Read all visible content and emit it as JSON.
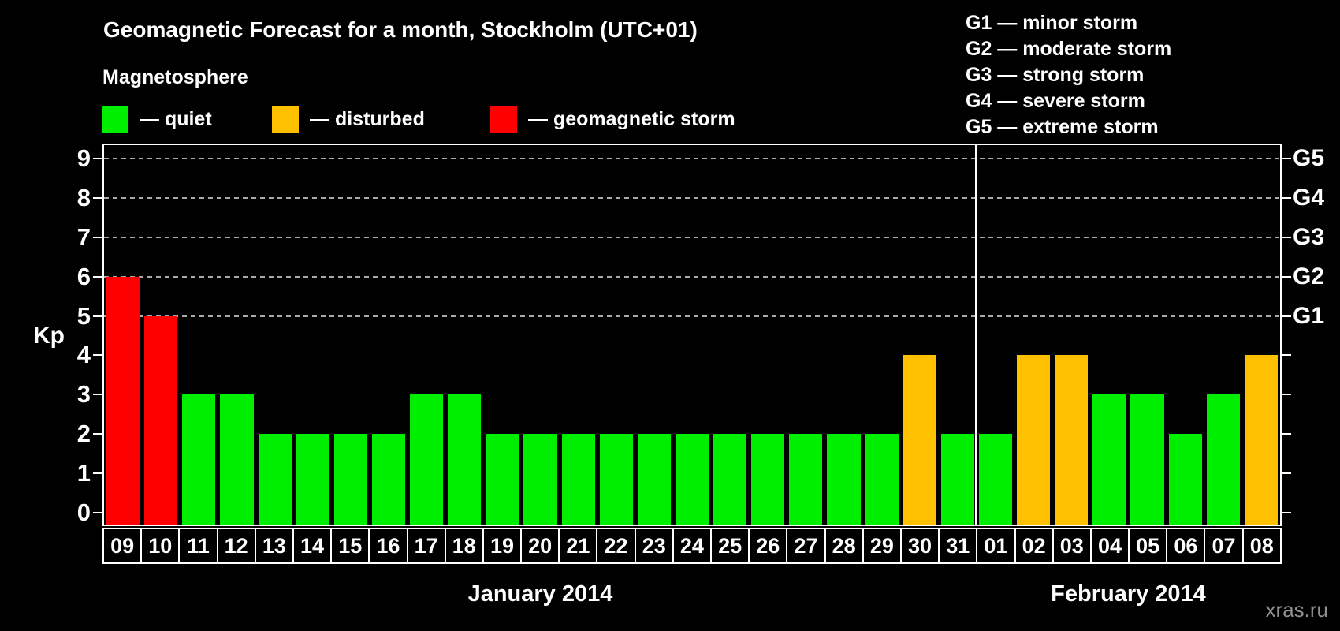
{
  "title": "Geomagnetic Forecast for a month, Stockholm (UTC+01)",
  "legend": {
    "heading": "Magnetosphere",
    "items": [
      {
        "status": "quiet",
        "label": "— quiet",
        "color": "#00ee00"
      },
      {
        "status": "disturbed",
        "label": "— disturbed",
        "color": "#ffc000"
      },
      {
        "status": "storm",
        "label": "— geomagnetic storm",
        "color": "#ff0000"
      }
    ]
  },
  "storm_scale_legend": [
    "G1 — minor storm",
    "G2 — moderate storm",
    "G3 — strong storm",
    "G4 — severe storm",
    "G5 — extreme storm"
  ],
  "watermark": "xras.ru",
  "chart_data": {
    "type": "bar",
    "title": "Geomagnetic Forecast for a month, Stockholm (UTC+01)",
    "ylabel": "Kp",
    "ylim": [
      0,
      9
    ],
    "yticks": [
      0,
      1,
      2,
      3,
      4,
      5,
      6,
      7,
      8,
      9
    ],
    "gridlines": [
      5,
      6,
      7,
      8,
      9
    ],
    "grid_style": "dashed",
    "legend_position": "top",
    "right_axis": {
      "labels": [
        "G1",
        "G2",
        "G3",
        "G4",
        "G5"
      ],
      "levels": [
        5,
        6,
        7,
        8,
        9
      ]
    },
    "categories": [
      "09",
      "10",
      "11",
      "12",
      "13",
      "14",
      "15",
      "16",
      "17",
      "18",
      "19",
      "20",
      "21",
      "22",
      "23",
      "24",
      "25",
      "26",
      "27",
      "28",
      "29",
      "30",
      "31",
      "01",
      "02",
      "03",
      "04",
      "05",
      "06",
      "07",
      "08"
    ],
    "values": [
      6,
      5,
      3,
      3,
      2,
      2,
      2,
      2,
      3,
      3,
      2,
      2,
      2,
      2,
      2,
      2,
      2,
      2,
      2,
      2,
      2,
      4,
      2,
      2,
      4,
      4,
      3,
      3,
      2,
      3,
      4
    ],
    "statuses": [
      "storm",
      "storm",
      "quiet",
      "quiet",
      "quiet",
      "quiet",
      "quiet",
      "quiet",
      "quiet",
      "quiet",
      "quiet",
      "quiet",
      "quiet",
      "quiet",
      "quiet",
      "quiet",
      "quiet",
      "quiet",
      "quiet",
      "quiet",
      "quiet",
      "disturbed",
      "quiet",
      "quiet",
      "disturbed",
      "disturbed",
      "quiet",
      "quiet",
      "quiet",
      "quiet",
      "disturbed"
    ],
    "status_colors": {
      "quiet": "#00ee00",
      "disturbed": "#ffc000",
      "storm": "#ff0000"
    },
    "months": [
      {
        "label": "January 2014",
        "days": 23
      },
      {
        "label": "February 2014",
        "days": 8
      }
    ]
  }
}
